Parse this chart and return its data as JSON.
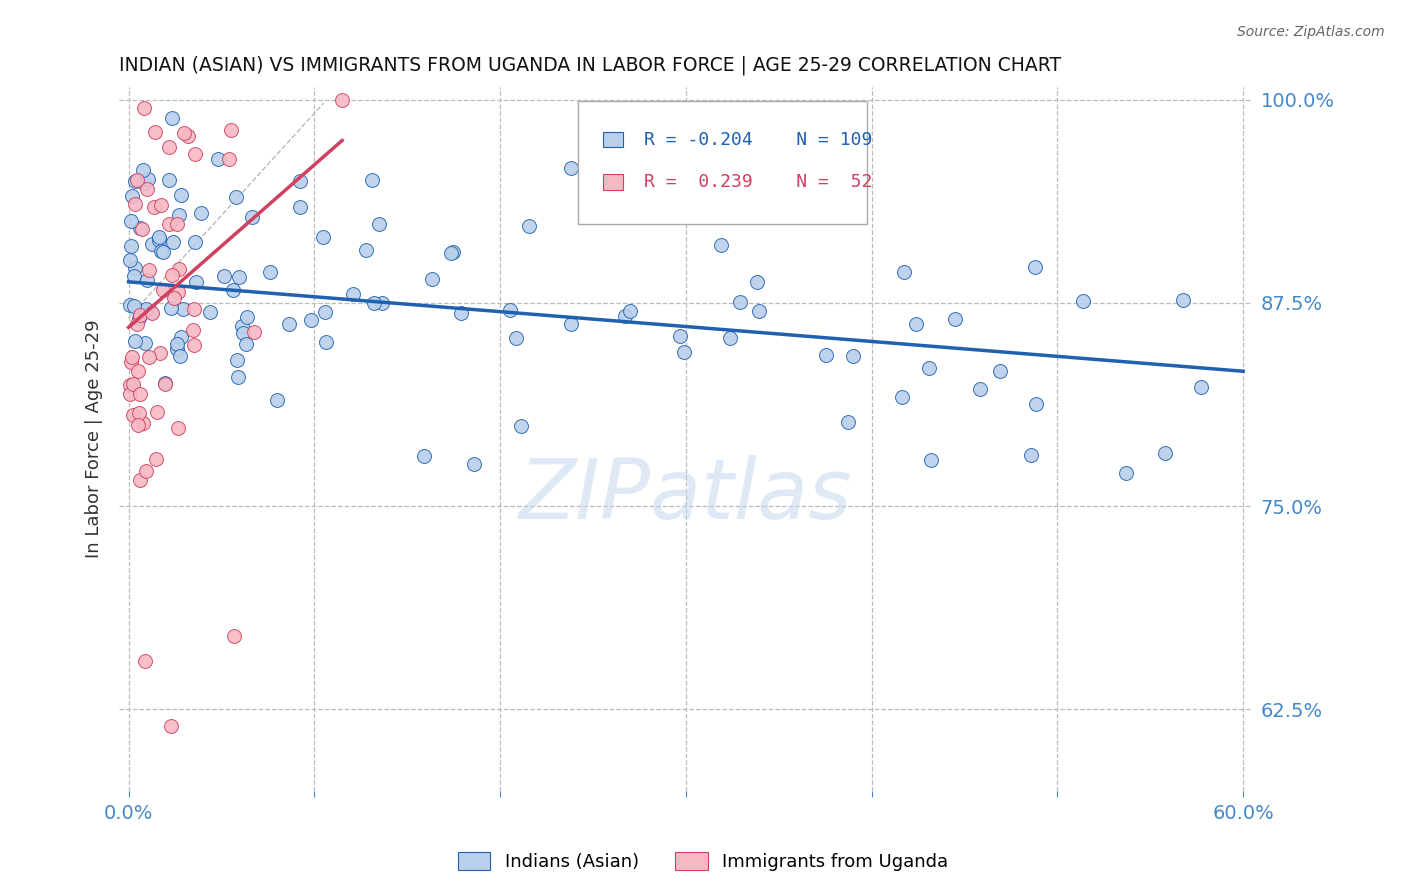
{
  "title": "INDIAN (ASIAN) VS IMMIGRANTS FROM UGANDA IN LABOR FORCE | AGE 25-29 CORRELATION CHART",
  "source": "Source: ZipAtlas.com",
  "ylabel": "In Labor Force | Age 25-29",
  "xlim": [
    -0.005,
    0.605
  ],
  "ylim": [
    0.575,
    1.008
  ],
  "yticks": [
    0.625,
    0.75,
    0.875,
    1.0
  ],
  "ytick_labels": [
    "62.5%",
    "75.0%",
    "87.5%",
    "100.0%"
  ],
  "xticks": [
    0.0,
    0.1,
    0.2,
    0.3,
    0.4,
    0.5,
    0.6
  ],
  "xtick_labels": [
    "0.0%",
    "",
    "",
    "",
    "",
    "",
    "60.0%"
  ],
  "blue_color": "#b8d0ea",
  "pink_color": "#f7b8c4",
  "line_blue": "#2060b0",
  "line_pink": "#d04060",
  "axis_color": "#4488cc",
  "r_blue": -0.204,
  "n_blue": 109,
  "r_pink": 0.239,
  "n_pink": 52,
  "legend_label_blue": "Indians (Asian)",
  "legend_label_pink": "Immigrants from Uganda",
  "watermark": "ZIPatlas",
  "blue_trend": [
    0.0,
    0.6,
    0.888,
    0.833
  ],
  "pink_trend": [
    0.0,
    0.115,
    0.86,
    0.975
  ],
  "diag_line": [
    0.0,
    0.105,
    0.866,
    0.998
  ]
}
